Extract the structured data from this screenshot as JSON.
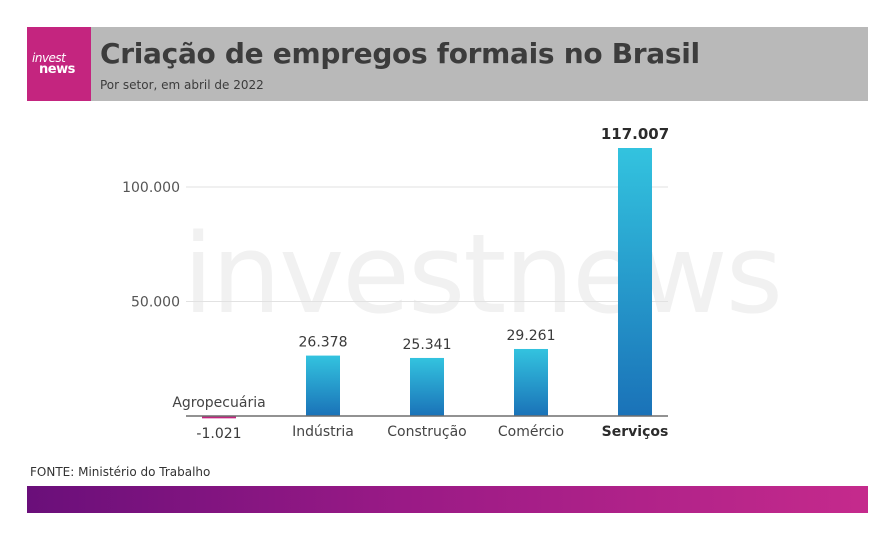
{
  "brand": {
    "logo_line1": "invest",
    "logo_line2": "news",
    "watermark": "investnews",
    "logo_color": "#c4257f"
  },
  "header": {
    "title": "Criação de empregos formais no Brasil",
    "subtitle": "Por setor, em abril de 2022"
  },
  "chart_data": {
    "type": "bar",
    "categories": [
      "Agropecuária",
      "Indústria",
      "Construção",
      "Comércio",
      "Serviços"
    ],
    "values": [
      -1021,
      26378,
      25341,
      29261,
      117007
    ],
    "value_labels": [
      "-1.021",
      "26.378",
      "25.341",
      "29.261",
      "117.007"
    ],
    "y_ticks": [
      50000,
      100000
    ],
    "y_tick_labels": [
      "50.000",
      "100.000"
    ],
    "ylim": [
      -1021,
      117007
    ],
    "grid": true,
    "highlight_category": "Serviços",
    "colors": {
      "positive_top": "#33c3df",
      "positive_bottom": "#1a72b8",
      "negative": "#c4257f"
    }
  },
  "source": "FONTE: Ministério do Trabalho"
}
